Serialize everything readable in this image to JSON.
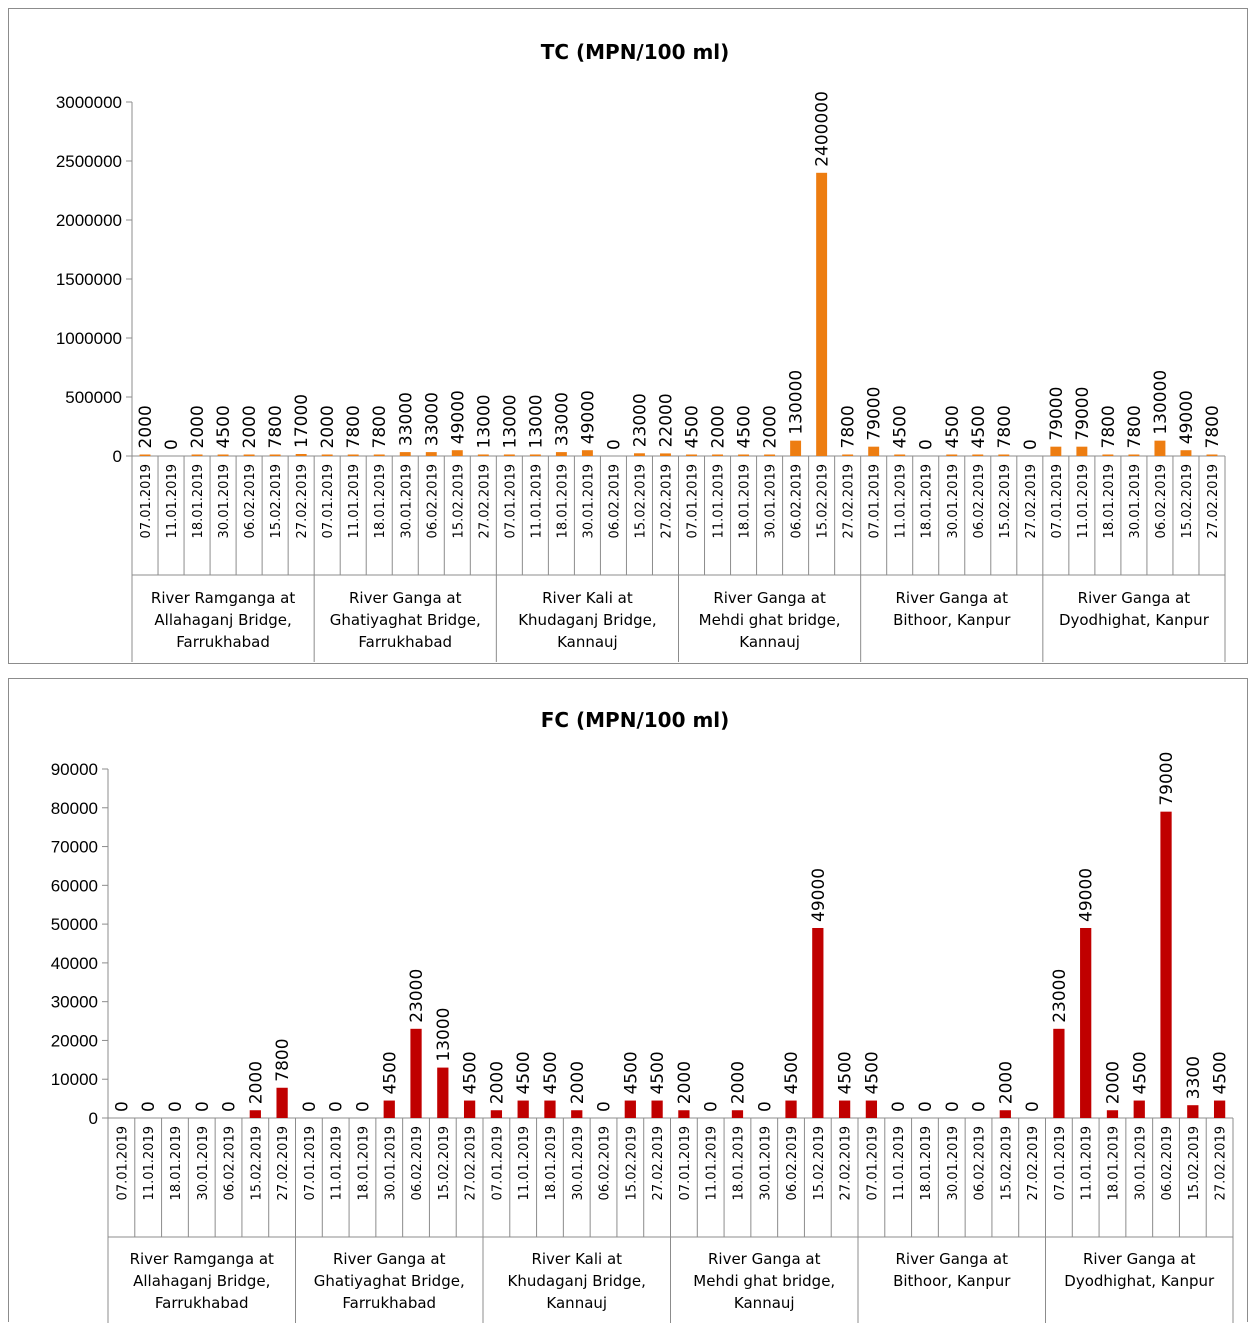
{
  "chart_data": [
    {
      "type": "bar",
      "title": "TC (MPN/100 ml)",
      "ylim": [
        0,
        3000000
      ],
      "yticks": [
        "0",
        "500000",
        "1000000",
        "1500000",
        "2000000",
        "2500000",
        "3000000"
      ],
      "bar_color": "#ed7d11",
      "groups": [
        {
          "label_lines": [
            "River Ramganga at",
            "Allahaganj Bridge,",
            "Farrukhabad"
          ],
          "dates": [
            "07.01.2019",
            "11.01.2019",
            "18.01.2019",
            "30.01.2019",
            "06.02.2019",
            "15.02.2019",
            "27.02.2019"
          ],
          "values": [
            2000,
            0,
            2000,
            4500,
            2000,
            7800,
            17000
          ]
        },
        {
          "label_lines": [
            "River Ganga at",
            "Ghatiyaghat Bridge,",
            "Farrukhabad"
          ],
          "dates": [
            "07.01.2019",
            "11.01.2019",
            "18.01.2019",
            "30.01.2019",
            "06.02.2019",
            "15.02.2019",
            "27.02.2019"
          ],
          "values": [
            2000,
            7800,
            7800,
            33000,
            33000,
            49000,
            13000
          ]
        },
        {
          "label_lines": [
            "River Kali at",
            "Khudaganj Bridge,",
            "Kannauj"
          ],
          "dates": [
            "07.01.2019",
            "11.01.2019",
            "18.01.2019",
            "30.01.2019",
            "06.02.2019",
            "15.02.2019",
            "27.02.2019"
          ],
          "values": [
            13000,
            13000,
            33000,
            49000,
            0,
            23000,
            22000
          ]
        },
        {
          "label_lines": [
            "River Ganga at",
            "Mehdi ghat bridge,",
            "Kannauj"
          ],
          "dates": [
            "07.01.2019",
            "11.01.2019",
            "18.01.2019",
            "30.01.2019",
            "06.02.2019",
            "15.02.2019",
            "27.02.2019"
          ],
          "values": [
            4500,
            2000,
            4500,
            2000,
            130000,
            2400000,
            7800
          ]
        },
        {
          "label_lines": [
            "River Ganga at",
            "Bithoor, Kanpur"
          ],
          "dates": [
            "07.01.2019",
            "11.01.2019",
            "18.01.2019",
            "30.01.2019",
            "06.02.2019",
            "15.02.2019",
            "27.02.2019"
          ],
          "values": [
            79000,
            4500,
            0,
            4500,
            4500,
            7800,
            0
          ]
        },
        {
          "label_lines": [
            "River Ganga at",
            "Dyodhighat, Kanpur"
          ],
          "dates": [
            "07.01.2019",
            "11.01.2019",
            "18.01.2019",
            "30.01.2019",
            "06.02.2019",
            "15.02.2019",
            "27.02.2019"
          ],
          "values": [
            79000,
            79000,
            7800,
            7800,
            130000,
            49000,
            7800
          ]
        }
      ]
    },
    {
      "type": "bar",
      "title": "FC (MPN/100 ml)",
      "ylim": [
        0,
        90000
      ],
      "yticks": [
        "0",
        "10000",
        "20000",
        "30000",
        "40000",
        "50000",
        "60000",
        "70000",
        "80000",
        "90000"
      ],
      "bar_color": "#c00000",
      "groups": [
        {
          "label_lines": [
            "River Ramganga at",
            "Allahaganj Bridge,",
            "Farrukhabad"
          ],
          "dates": [
            "07.01.2019",
            "11.01.2019",
            "18.01.2019",
            "30.01.2019",
            "06.02.2019",
            "15.02.2019",
            "27.02.2019"
          ],
          "values": [
            0,
            0,
            0,
            0,
            0,
            2000,
            7800
          ]
        },
        {
          "label_lines": [
            "River Ganga at",
            "Ghatiyaghat Bridge,",
            "Farrukhabad"
          ],
          "dates": [
            "07.01.2019",
            "11.01.2019",
            "18.01.2019",
            "30.01.2019",
            "06.02.2019",
            "15.02.2019",
            "27.02.2019"
          ],
          "values": [
            0,
            0,
            0,
            4500,
            23000,
            13000,
            4500
          ]
        },
        {
          "label_lines": [
            "River Kali at",
            "Khudaganj Bridge,",
            "Kannauj"
          ],
          "dates": [
            "07.01.2019",
            "11.01.2019",
            "18.01.2019",
            "30.01.2019",
            "06.02.2019",
            "15.02.2019",
            "27.02.2019"
          ],
          "values": [
            2000,
            4500,
            4500,
            2000,
            0,
            4500,
            4500
          ]
        },
        {
          "label_lines": [
            "River Ganga at",
            "Mehdi ghat bridge,",
            "Kannauj"
          ],
          "dates": [
            "07.01.2019",
            "11.01.2019",
            "18.01.2019",
            "30.01.2019",
            "06.02.2019",
            "15.02.2019",
            "27.02.2019"
          ],
          "values": [
            2000,
            0,
            2000,
            0,
            4500,
            49000,
            4500
          ]
        },
        {
          "label_lines": [
            "River Ganga at",
            "Bithoor, Kanpur"
          ],
          "dates": [
            "07.01.2019",
            "11.01.2019",
            "18.01.2019",
            "30.01.2019",
            "06.02.2019",
            "15.02.2019",
            "27.02.2019"
          ],
          "values": [
            4500,
            0,
            0,
            0,
            0,
            2000,
            0
          ]
        },
        {
          "label_lines": [
            "River Ganga at",
            "Dyodhighat, Kanpur"
          ],
          "dates": [
            "07.01.2019",
            "11.01.2019",
            "18.01.2019",
            "30.01.2019",
            "06.02.2019",
            "15.02.2019",
            "27.02.2019"
          ],
          "values": [
            23000,
            49000,
            2000,
            4500,
            79000,
            3300,
            4500
          ]
        }
      ]
    }
  ]
}
